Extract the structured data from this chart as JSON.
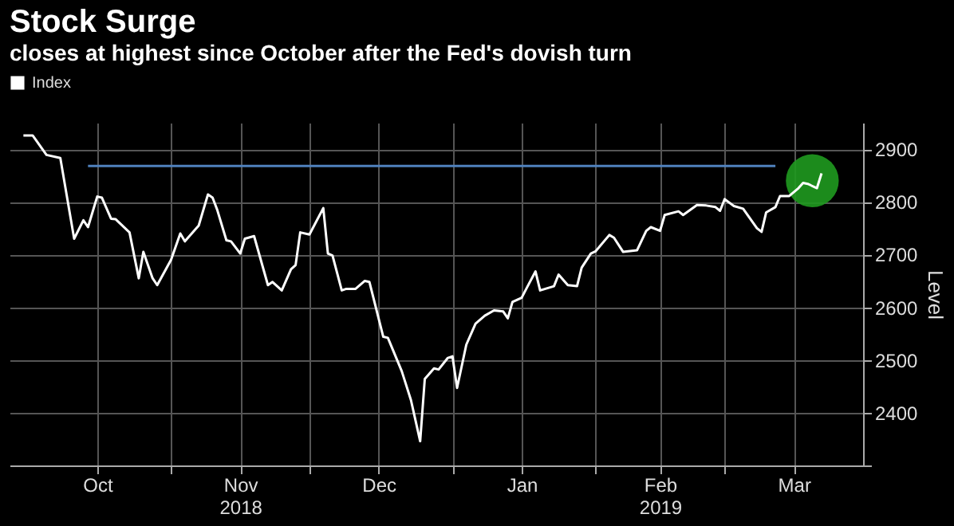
{
  "chart_data": {
    "type": "line",
    "title": "Stock Surge",
    "subtitle": "closes at highest since October after the Fed's dovish turn",
    "ylabel": "Level",
    "legend": "top left",
    "grid": true,
    "ylim": [
      2300,
      2950
    ],
    "yticks": [
      {
        "value": 2300,
        "label": null
      },
      2400,
      2500,
      2600,
      2700,
      2800,
      2900
    ],
    "xlim": [
      "2018-09-27",
      "2019-03-31"
    ],
    "xticks": [
      {
        "value": "2018-10-16",
        "label": "Oct"
      },
      {
        "value": "2018-11-01",
        "label": null
      },
      {
        "value": "2018-11-16",
        "label": "Nov\n2018"
      },
      {
        "value": "2018-12-01",
        "label": null
      },
      {
        "value": "2018-12-16",
        "label": "Dec"
      },
      {
        "value": "2019-01-01",
        "label": null
      },
      {
        "value": "2019-01-16",
        "label": "Jan"
      },
      {
        "value": "2019-02-01",
        "label": null
      },
      {
        "value": "2019-02-15",
        "label": "Feb\n2019"
      },
      {
        "value": "2019-03-01",
        "label": null
      },
      {
        "value": "2019-03-16",
        "label": "Mar"
      }
    ],
    "series": [
      {
        "type": "scatter",
        "marker": "circle",
        "color": "#1f9a1f",
        "x": [
          "2019-03-20"
        ],
        "values": [
          2840
        ]
      },
      {
        "color": "#4f81bd",
        "x": [
          "2018-10-14",
          "2019-03-12"
        ],
        "values": [
          2868,
          2868
        ]
      },
      {
        "name": "Index",
        "color": "#ffffff",
        "x": [
          "2018-09-30",
          "2018-10-02",
          "2018-10-05",
          "2018-10-08",
          "2018-10-11",
          "2018-10-13",
          "2018-10-14",
          "2018-10-16",
          "2018-10-17",
          "2018-10-19",
          "2018-10-20",
          "2018-10-23",
          "2018-10-25",
          "2018-10-26",
          "2018-10-28",
          "2018-10-29",
          "2018-11-01",
          "2018-11-03",
          "2018-11-04",
          "2018-11-07",
          "2018-11-09",
          "2018-11-10",
          "2018-11-11",
          "2018-11-13",
          "2018-11-14",
          "2018-11-16",
          "2018-11-17",
          "2018-11-19",
          "2018-11-22",
          "2018-11-23",
          "2018-11-25",
          "2018-11-27",
          "2018-11-28",
          "2018-11-29",
          "2018-12-01",
          "2018-12-04",
          "2018-12-05",
          "2018-12-06",
          "2018-12-08",
          "2018-12-09",
          "2018-12-11",
          "2018-12-13",
          "2018-12-14",
          "2018-12-17",
          "2018-12-18",
          "2018-12-21",
          "2018-12-23",
          "2018-12-25",
          "2018-12-26",
          "2018-12-28",
          "2018-12-29",
          "2018-12-31",
          "2019-01-01",
          "2019-01-02",
          "2019-01-04",
          "2019-01-06",
          "2019-01-08",
          "2019-01-10",
          "2019-01-12",
          "2019-01-13",
          "2019-01-14",
          "2019-01-16",
          "2019-01-17",
          "2019-01-19",
          "2019-01-20",
          "2019-01-23",
          "2019-01-24",
          "2019-01-26",
          "2019-01-28",
          "2019-01-29",
          "2019-01-31",
          "2019-02-01",
          "2019-02-04",
          "2019-02-05",
          "2019-02-07",
          "2019-02-10",
          "2019-02-12",
          "2019-02-13",
          "2019-02-15",
          "2019-02-16",
          "2019-02-19",
          "2019-02-20",
          "2019-02-23",
          "2019-02-25",
          "2019-02-27",
          "2019-02-28",
          "2019-03-01",
          "2019-03-03",
          "2019-03-05",
          "2019-03-08",
          "2019-03-09",
          "2019-03-10",
          "2019-03-12",
          "2019-03-13",
          "2019-03-15",
          "2019-03-17",
          "2019-03-18",
          "2019-03-19",
          "2019-03-21",
          "2019-03-22"
        ],
        "values": [
          2926,
          2926,
          2889,
          2883,
          2730,
          2765,
          2752,
          2810,
          2808,
          2768,
          2767,
          2742,
          2655,
          2705,
          2655,
          2642,
          2690,
          2740,
          2725,
          2755,
          2814,
          2808,
          2785,
          2727,
          2725,
          2702,
          2730,
          2735,
          2642,
          2648,
          2632,
          2672,
          2680,
          2742,
          2738,
          2788,
          2702,
          2698,
          2632,
          2635,
          2635,
          2650,
          2648,
          2544,
          2542,
          2479,
          2424,
          2346,
          2464,
          2484,
          2482,
          2504,
          2507,
          2447,
          2529,
          2569,
          2584,
          2594,
          2592,
          2579,
          2610,
          2618,
          2635,
          2668,
          2632,
          2640,
          2662,
          2642,
          2640,
          2675,
          2702,
          2706,
          2737,
          2732,
          2705,
          2708,
          2745,
          2752,
          2745,
          2775,
          2782,
          2775,
          2794,
          2793,
          2790,
          2783,
          2805,
          2792,
          2787,
          2750,
          2743,
          2780,
          2790,
          2811,
          2811,
          2826,
          2836,
          2834,
          2826,
          2854
        ]
      }
    ]
  }
}
